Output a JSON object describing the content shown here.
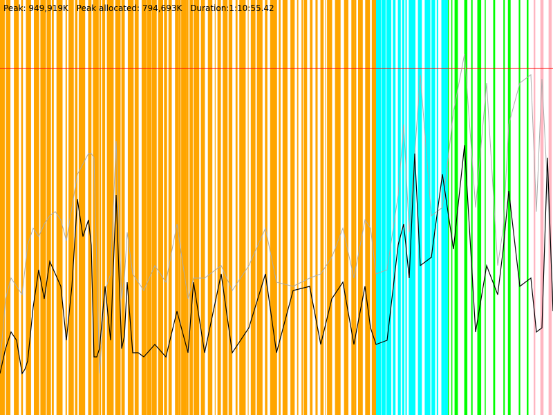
{
  "stats": {
    "peak": "Peak: 949,919K",
    "peak_allocated": "Peak allocated: 794,693K",
    "duration": "Duration:1:10:55.42"
  },
  "colors": {
    "background": "#ffffff",
    "phase_orange": "#ffa500",
    "phase_cyan": "#00ffff",
    "phase_green": "#00ff00",
    "phase_pink": "#ffb6c1",
    "limit_line": "#ff0000",
    "heap_total": "#aaaaaa",
    "heap_used": "#000000"
  },
  "chart_data": {
    "type": "line",
    "title": "",
    "xlabel": "",
    "ylabel": "",
    "x_unit": "time fraction of run (0–1)",
    "y_unit": "memory fraction (0–1)",
    "ylim": [
      0,
      1
    ],
    "limit_line": 0.835,
    "grid": false,
    "phase_bands": [
      {
        "name": "phase-orange",
        "color": "#ffa500",
        "x_start": 0.0,
        "x_end": 0.68,
        "coverage": "dense"
      },
      {
        "name": "phase-cyan",
        "color": "#00ffff",
        "x_start": 0.68,
        "x_end": 0.81,
        "coverage": "dense"
      },
      {
        "name": "phase-green",
        "color": "#00ff00",
        "x_start": 0.81,
        "x_end": 0.965,
        "coverage": "sparse"
      },
      {
        "name": "phase-pink",
        "color": "#ffb6c1",
        "x_start": 0.965,
        "x_end": 1.0,
        "coverage": "sparse"
      }
    ],
    "series": [
      {
        "color": "#aaaaaa",
        "x": [
          0.0,
          0.01,
          0.02,
          0.04,
          0.05,
          0.06,
          0.07,
          0.08,
          0.09,
          0.1,
          0.11,
          0.12,
          0.13,
          0.14,
          0.16,
          0.165,
          0.17,
          0.18,
          0.19,
          0.2,
          0.21,
          0.22,
          0.225,
          0.23,
          0.24,
          0.25,
          0.26,
          0.28,
          0.3,
          0.32,
          0.34,
          0.35,
          0.37,
          0.4,
          0.42,
          0.45,
          0.48,
          0.5,
          0.53,
          0.56,
          0.58,
          0.6,
          0.62,
          0.64,
          0.66,
          0.67,
          0.68,
          0.7,
          0.72,
          0.73,
          0.74,
          0.76,
          0.78,
          0.8,
          0.82,
          0.84,
          0.86,
          0.88,
          0.9,
          0.91,
          0.92,
          0.94,
          0.96,
          0.97,
          0.98,
          0.99,
          1.0
        ],
        "y": [
          0.12,
          0.28,
          0.33,
          0.29,
          0.41,
          0.45,
          0.43,
          0.46,
          0.48,
          0.49,
          0.47,
          0.42,
          0.5,
          0.58,
          0.63,
          0.63,
          0.62,
          0.1,
          0.3,
          0.34,
          0.66,
          0.28,
          0.33,
          0.44,
          0.34,
          0.32,
          0.3,
          0.36,
          0.32,
          0.46,
          0.28,
          0.33,
          0.33,
          0.36,
          0.3,
          0.36,
          0.45,
          0.32,
          0.31,
          0.33,
          0.34,
          0.38,
          0.45,
          0.33,
          0.47,
          0.45,
          0.34,
          0.35,
          0.53,
          0.7,
          0.44,
          0.82,
          0.48,
          0.5,
          0.73,
          0.87,
          0.5,
          0.8,
          0.36,
          0.45,
          0.7,
          0.8,
          0.82,
          0.49,
          0.81,
          0.55,
          0.28
        ]
      },
      {
        "color": "#000000",
        "x": [
          0.0,
          0.01,
          0.02,
          0.03,
          0.04,
          0.045,
          0.05,
          0.06,
          0.07,
          0.08,
          0.09,
          0.1,
          0.11,
          0.12,
          0.13,
          0.14,
          0.15,
          0.16,
          0.165,
          0.17,
          0.175,
          0.18,
          0.19,
          0.2,
          0.21,
          0.22,
          0.225,
          0.23,
          0.24,
          0.25,
          0.26,
          0.28,
          0.3,
          0.32,
          0.34,
          0.35,
          0.37,
          0.4,
          0.42,
          0.45,
          0.48,
          0.5,
          0.53,
          0.56,
          0.58,
          0.6,
          0.62,
          0.64,
          0.66,
          0.67,
          0.68,
          0.7,
          0.72,
          0.73,
          0.74,
          0.75,
          0.76,
          0.78,
          0.8,
          0.82,
          0.84,
          0.86,
          0.88,
          0.9,
          0.91,
          0.92,
          0.94,
          0.96,
          0.97,
          0.98,
          0.99,
          1.0
        ],
        "y": [
          0.1,
          0.16,
          0.2,
          0.18,
          0.1,
          0.11,
          0.13,
          0.26,
          0.35,
          0.28,
          0.37,
          0.34,
          0.31,
          0.18,
          0.31,
          0.52,
          0.43,
          0.47,
          0.41,
          0.14,
          0.14,
          0.16,
          0.31,
          0.18,
          0.53,
          0.16,
          0.19,
          0.32,
          0.15,
          0.15,
          0.14,
          0.17,
          0.14,
          0.25,
          0.15,
          0.32,
          0.15,
          0.34,
          0.15,
          0.21,
          0.34,
          0.15,
          0.3,
          0.31,
          0.17,
          0.28,
          0.32,
          0.17,
          0.31,
          0.21,
          0.17,
          0.18,
          0.41,
          0.46,
          0.33,
          0.63,
          0.36,
          0.38,
          0.58,
          0.4,
          0.65,
          0.2,
          0.36,
          0.29,
          0.4,
          0.54,
          0.31,
          0.33,
          0.2,
          0.21,
          0.62,
          0.25
        ]
      }
    ]
  }
}
